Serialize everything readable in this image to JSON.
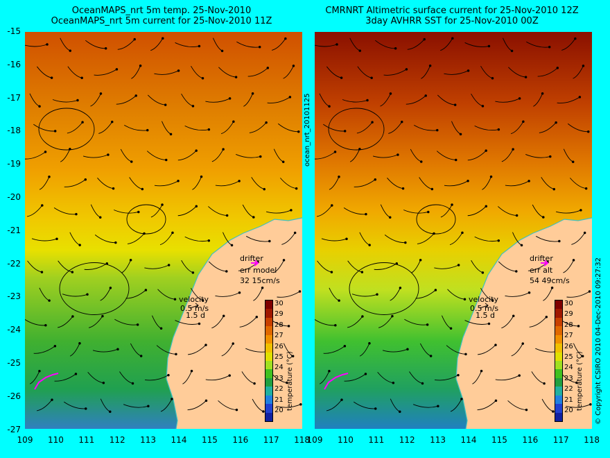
{
  "left_panel": {
    "title_line1": "OceanMAPS_nrt 5m temp. 25-Nov-2010",
    "title_line2": "OceanMAPS_nrt 5m current for 25-Nov-2010 11Z",
    "drifter_label": "drifter",
    "err_label": "err model",
    "err_value": "32 15cm/s",
    "velocity_label": "velocity",
    "velocity_scale": "0.5 m/s",
    "velocity_days": "1.5 d"
  },
  "right_panel": {
    "title_line1": "CMRNRT Altimetric surface current for 25-Nov-2010 12Z",
    "title_line2": "3day AVHRR SST for 25-Nov-2010 00Z",
    "drifter_label": "drifter",
    "err_label": "err alt",
    "err_value": "54 49cm/s",
    "velocity_label": "velocity",
    "velocity_scale": "0.5 m/s",
    "velocity_days": "1.5 d"
  },
  "side_label": "ocean_nrt_20101125",
  "copyright": "© Copyright CSIRO 2010  04-Dec-2010 09:27:32",
  "y_ticks": [
    "-15",
    "-16",
    "-17",
    "-18",
    "-19",
    "-20",
    "-21",
    "-22",
    "-23",
    "-24",
    "-25",
    "-26",
    "-27"
  ],
  "x_ticks": [
    "109",
    "110",
    "111",
    "112",
    "113",
    "114",
    "115",
    "116",
    "117",
    "118"
  ],
  "colorbar": {
    "label": "temperature (°C)",
    "ticks": [
      "30",
      "29",
      "28",
      "27",
      "26",
      "25",
      "24",
      "23",
      "22",
      "21",
      "20"
    ],
    "colors": [
      "#7f0000",
      "#a01800",
      "#c84000",
      "#e06800",
      "#f09000",
      "#f0c000",
      "#e0e000",
      "#a0e020",
      "#40c020",
      "#20a040",
      "#20b0a0",
      "#2080e0",
      "#2040d0",
      "#1020a0"
    ]
  },
  "colors": {
    "background": "#00ffff",
    "land": "#ffcc99",
    "coast": "#40c0c0",
    "drifter": "#ff00ff"
  }
}
